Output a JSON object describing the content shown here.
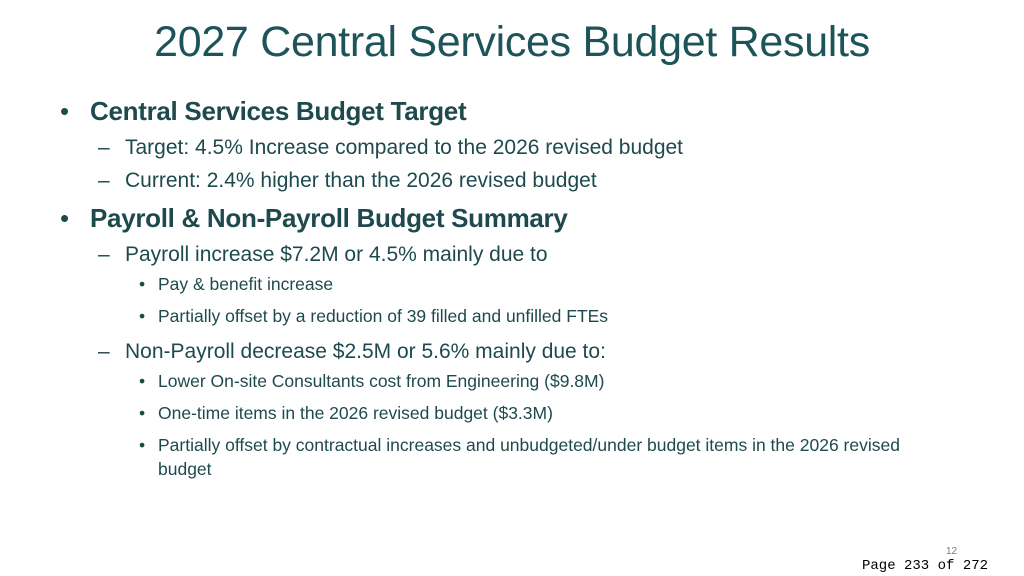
{
  "title": "2027 Central Services Budget Results",
  "bullet_symbol": "•",
  "dash_symbol": "–",
  "sections": [
    {
      "heading": "Central Services Budget Target",
      "items": [
        {
          "text": "Target: 4.5% Increase compared to the 2026 revised budget",
          "sub": []
        },
        {
          "text": "Current: 2.4% higher than the 2026 revised budget",
          "sub": []
        }
      ]
    },
    {
      "heading": "Payroll & Non-Payroll Budget Summary",
      "items": [
        {
          "text": "Payroll increase $7.2M or 4.5% mainly due to",
          "sub": [
            "Pay & benefit increase",
            "Partially offset by a reduction of 39 filled and unfilled FTEs"
          ]
        },
        {
          "text": "Non-Payroll decrease $2.5M or 5.6% mainly due to:",
          "sub": [
            "Lower On-site Consultants cost from Engineering ($9.8M)",
            "One-time items in the 2026 revised budget ($3.3M)",
            "Partially offset by contractual increases and unbudgeted/under budget items in the 2026 revised budget"
          ]
        }
      ]
    }
  ],
  "slide_number": "12",
  "page_label": "Page 233 of 272",
  "colors": {
    "title": "#1d5459",
    "text": "#1e4a4e"
  }
}
